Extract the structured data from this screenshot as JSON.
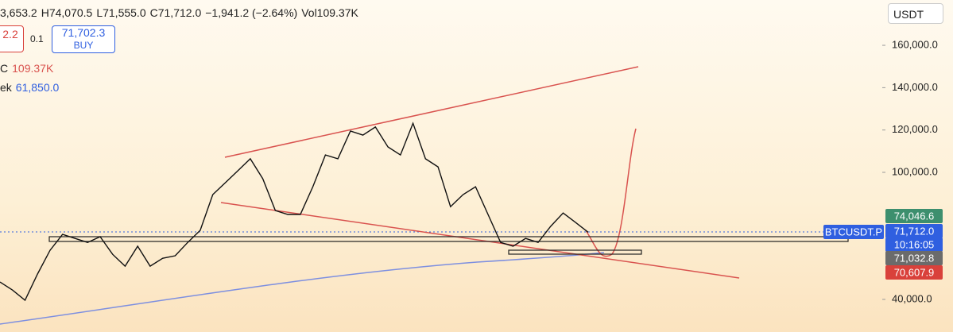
{
  "header": {
    "ohlc": [
      "3,653.2",
      "H74,070.5",
      "L71,555.0",
      "C71,712.0",
      "−1,941.2 (−2.64%)",
      "Vol109.37K"
    ],
    "sell": "2.2",
    "qty": "0.1",
    "buy_price": "71,702.3",
    "buy_label": "BUY",
    "indicator1": {
      "name": "C",
      "value": "109.37K"
    },
    "indicator2": {
      "name": "ek",
      "value": "61,850.0"
    },
    "currency": "USDT"
  },
  "chart_data": {
    "type": "line",
    "ylim": [
      24600,
      181400
    ],
    "yticks": [
      {
        "value": 160000,
        "label": "160,000.0"
      },
      {
        "value": 140000,
        "label": "140,000.0"
      },
      {
        "value": 120000,
        "label": "120,000.0"
      },
      {
        "value": 100000,
        "label": "100,000.0"
      },
      {
        "value": 40000,
        "label": "40,000.0"
      }
    ],
    "categories": [
      null,
      null,
      null,
      null,
      null,
      null,
      null,
      null,
      null,
      null,
      null,
      null,
      null,
      null,
      null,
      null,
      null,
      null,
      null,
      null,
      null,
      null,
      null,
      null,
      null,
      null,
      null,
      null,
      null,
      null,
      null,
      null,
      null,
      null,
      null,
      null,
      null,
      null,
      null,
      null,
      null,
      null,
      null,
      null,
      null,
      null,
      null,
      null
    ],
    "values": [
      48200,
      44400,
      39600,
      52000,
      63200,
      70700,
      68800,
      66900,
      69600,
      61300,
      55700,
      65100,
      55700,
      59400,
      60600,
      66900,
      72600,
      89500,
      95100,
      100700,
      106400,
      97000,
      82000,
      80100,
      80100,
      93200,
      108200,
      106400,
      119500,
      117600,
      121400,
      112000,
      108200,
      123200,
      106400,
      102600,
      83800,
      89500,
      93200,
      80100,
      66900,
      65100,
      68800,
      66900,
      74500,
      80800,
      76300,
      71712
    ],
    "price_tags": [
      {
        "label": "74,046.6",
        "color": "#3d8f6e"
      },
      {
        "label": "71,712.0",
        "color": "#2f5fe0"
      },
      {
        "label": "10:16:05",
        "color": "#2f5fe0"
      },
      {
        "label": "71,032.8",
        "color": "#6b6b6b"
      },
      {
        "label": "70,607.9",
        "color": "#d9413b"
      }
    ],
    "symbol": "BTCUSDT.P"
  }
}
